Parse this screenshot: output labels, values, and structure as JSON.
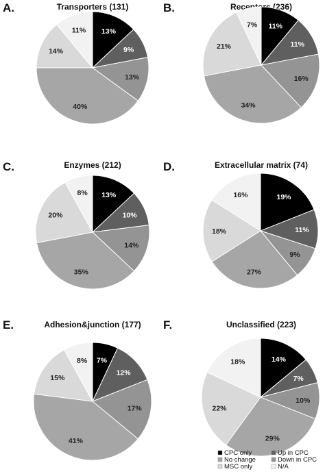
{
  "colors": {
    "cpc_only": "#000000",
    "up_in_cpc": "#5f5f5f",
    "no_change": "#a6a6a6",
    "down_in_cpc": "#949494",
    "msc_only": "#d9d9d9",
    "na": "#f2f2f2"
  },
  "legend": [
    {
      "label": "CPC only",
      "color": "#000000"
    },
    {
      "label": "Up in CPC",
      "color": "#5f5f5f"
    },
    {
      "label": "No change",
      "color": "#a6a6a6"
    },
    {
      "label": "Down in CPC",
      "color": "#949494"
    },
    {
      "label": "MSC only",
      "color": "#d9d9d9"
    },
    {
      "label": "N/A",
      "color": "#f2f2f2"
    }
  ],
  "chart_data": [
    {
      "type": "pie",
      "letter": "A.",
      "title": "Transporters (131)",
      "slices": [
        {
          "category": "CPC only",
          "value": 13,
          "label": "13%"
        },
        {
          "category": "Up in CPC",
          "value": 9,
          "label": "9%"
        },
        {
          "category": "Down in CPC",
          "value": 13,
          "label": "13%"
        },
        {
          "category": "No change",
          "value": 40,
          "label": "40%"
        },
        {
          "category": "MSC only",
          "value": 14,
          "label": "14%"
        },
        {
          "category": "N/A",
          "value": 11,
          "label": "11%"
        }
      ]
    },
    {
      "type": "pie",
      "letter": "B.",
      "title": "Receptors (236)",
      "slices": [
        {
          "category": "CPC only",
          "value": 11,
          "label": "11%"
        },
        {
          "category": "Up in CPC",
          "value": 11,
          "label": "11%"
        },
        {
          "category": "Down in CPC",
          "value": 16,
          "label": "16%"
        },
        {
          "category": "No change",
          "value": 34,
          "label": "34%"
        },
        {
          "category": "MSC only",
          "value": 21,
          "label": "21%"
        },
        {
          "category": "N/A",
          "value": 7,
          "label": "7%"
        }
      ]
    },
    {
      "type": "pie",
      "letter": "C.",
      "title": "Enzymes (212)",
      "slices": [
        {
          "category": "CPC only",
          "value": 13,
          "label": "13%"
        },
        {
          "category": "Up in CPC",
          "value": 10,
          "label": "10%"
        },
        {
          "category": "Down in CPC",
          "value": 14,
          "label": "14%"
        },
        {
          "category": "No change",
          "value": 35,
          "label": "35%"
        },
        {
          "category": "MSC only",
          "value": 20,
          "label": "20%"
        },
        {
          "category": "N/A",
          "value": 8,
          "label": "8%"
        }
      ]
    },
    {
      "type": "pie",
      "letter": "D.",
      "title": "Extracellular matrix (74)",
      "slices": [
        {
          "category": "CPC only",
          "value": 19,
          "label": "19%"
        },
        {
          "category": "Up in CPC",
          "value": 11,
          "label": "11%"
        },
        {
          "category": "Down in CPC",
          "value": 9,
          "label": "9%"
        },
        {
          "category": "No change",
          "value": 27,
          "label": "27%"
        },
        {
          "category": "MSC only",
          "value": 18,
          "label": "18%"
        },
        {
          "category": "N/A",
          "value": 16,
          "label": "16%"
        }
      ]
    },
    {
      "type": "pie",
      "letter": "E.",
      "title": "Adhesion&junction (177)",
      "slices": [
        {
          "category": "CPC only",
          "value": 7,
          "label": "7%"
        },
        {
          "category": "Up in CPC",
          "value": 12,
          "label": "12%"
        },
        {
          "category": "Down in CPC",
          "value": 17,
          "label": "17%"
        },
        {
          "category": "No change",
          "value": 41,
          "label": "41%"
        },
        {
          "category": "MSC only",
          "value": 15,
          "label": "15%"
        },
        {
          "category": "N/A",
          "value": 8,
          "label": "8%"
        }
      ]
    },
    {
      "type": "pie",
      "letter": "F.",
      "title": "Unclassified (223)",
      "slices": [
        {
          "category": "CPC only",
          "value": 14,
          "label": "14%"
        },
        {
          "category": "Up in CPC",
          "value": 7,
          "label": "7%"
        },
        {
          "category": "Down in CPC",
          "value": 10,
          "label": "10%"
        },
        {
          "category": "No change",
          "value": 29,
          "label": "29%"
        },
        {
          "category": "MSC only",
          "value": 22,
          "label": "22%"
        },
        {
          "category": "N/A",
          "value": 18,
          "label": "18%"
        }
      ]
    }
  ]
}
